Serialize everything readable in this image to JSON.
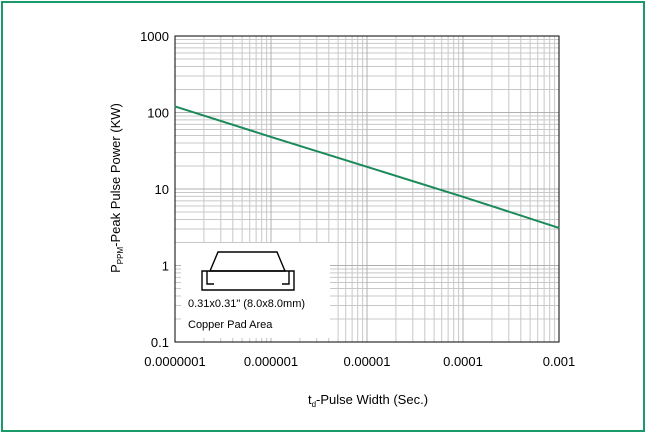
{
  "colors": {
    "border": "#1a9a6a",
    "series": "#1a8a5a",
    "grid": "#c8c8c8",
    "gridMajor": "#b0b0b0",
    "axis": "#000000"
  },
  "chart_data": {
    "type": "line",
    "scale": {
      "x": "log",
      "y": "log"
    },
    "grid": true,
    "xlim": [
      1e-07,
      0.001
    ],
    "ylim": [
      0.1,
      1000
    ],
    "x_ticks": [
      "0.0000001",
      "0.000001",
      "0.00001",
      "0.0001",
      "0.001"
    ],
    "y_ticks": [
      "0.1",
      "1",
      "10",
      "100",
      "1000"
    ],
    "xlabel": {
      "main": "t",
      "sub": "d",
      "rest": "-Pulse Width (Sec.)"
    },
    "ylabel": {
      "main": "P",
      "sub": "PPM",
      "rest": "-Peak Pulse Power (KW)"
    },
    "series": [
      {
        "x": [
          1e-07,
          1e-06,
          1e-05,
          0.0001,
          0.001
        ],
        "y": [
          120,
          48,
          19.5,
          7.9,
          3.1
        ]
      }
    ],
    "annotation": {
      "line1": "0.31x0.31\" (8.0x8.0mm)",
      "line2": "Copper Pad Area"
    }
  }
}
